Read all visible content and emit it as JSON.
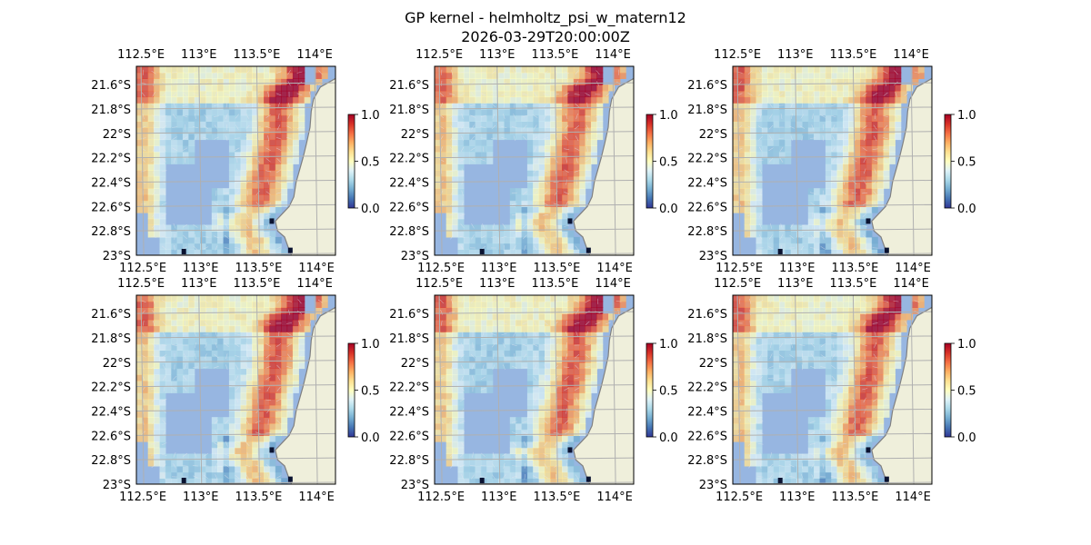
{
  "figure": {
    "title_line1": "GP kernel - helmholtz_psi_w_matern12",
    "title_line2": "2026-03-29T20:00:00Z"
  },
  "colors": {
    "ocean": "#97b6e1",
    "land": "#efefdb",
    "coast": "#808080",
    "grid": "#b0b0b0",
    "colormap": [
      "#313695",
      "#4575b4",
      "#74add1",
      "#abd9e9",
      "#e0f3f8",
      "#ffffbf",
      "#fee090",
      "#fdae61",
      "#f46d43",
      "#d73027",
      "#a50026"
    ]
  },
  "chart_data": {
    "type": "heatmap",
    "layout": "2x3 small multiples",
    "panels": 6,
    "xticklabels": [
      "112.5°E",
      "113°E",
      "113.5°E",
      "114°E"
    ],
    "xticks": [
      112.5,
      113.0,
      113.5,
      114.0
    ],
    "yticklabels": [
      "21.6°S",
      "21.8°S",
      "22°S",
      "22.2°S",
      "22.4°S",
      "22.6°S",
      "22.8°S",
      "23°S"
    ],
    "yticks": [
      -21.6,
      -21.8,
      -22.0,
      -22.2,
      -22.4,
      -22.6,
      -22.8,
      -23.0
    ],
    "xlim": [
      112.46,
      114.18
    ],
    "ylim": [
      -23.0,
      -21.45
    ],
    "colorbar": {
      "ticks": [
        "0.0",
        "0.5",
        "1.0"
      ],
      "range": [
        0.0,
        1.0
      ]
    },
    "field_description_levels": {
      "coastal_band_northeast": 0.85,
      "western_edge_band": 0.7,
      "open_ocean_interior": 0.35,
      "southern_nearshore": 0.15
    }
  }
}
